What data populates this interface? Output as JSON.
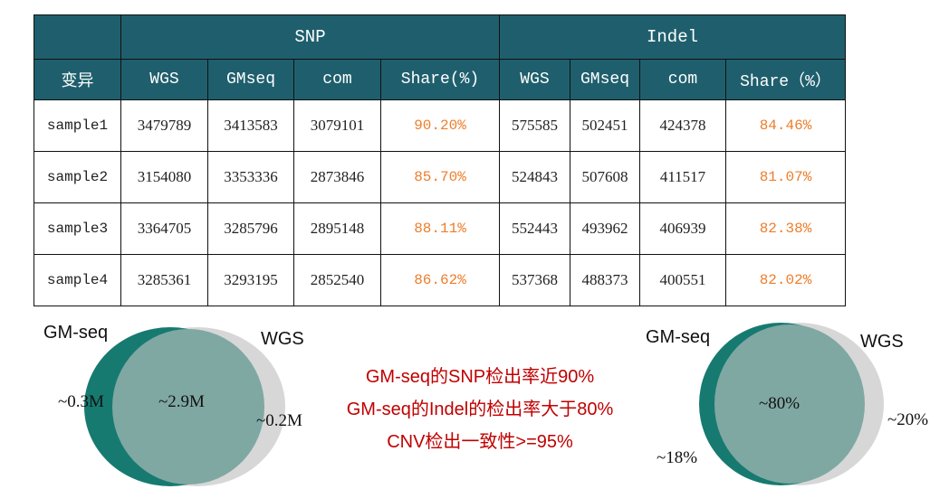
{
  "table": {
    "group_headers": {
      "empty": "",
      "snp": "SNP",
      "indel": "Indel"
    },
    "col_headers": [
      "变异",
      "WGS",
      "GMseq",
      "com",
      "Share(%)",
      "WGS",
      "GMseq",
      "com",
      "Share（%）"
    ],
    "rows": [
      {
        "sample": "sample1",
        "snp_wgs": "3479789",
        "snp_gmseq": "3413583",
        "snp_com": "3079101",
        "snp_share": "90.20%",
        "indel_wgs": "575585",
        "indel_gmseq": "502451",
        "indel_com": "424378",
        "indel_share": "84.46%"
      },
      {
        "sample": "sample2",
        "snp_wgs": "3154080",
        "snp_gmseq": "3353336",
        "snp_com": "2873846",
        "snp_share": "85.70%",
        "indel_wgs": "524843",
        "indel_gmseq": "507608",
        "indel_com": "411517",
        "indel_share": "81.07%"
      },
      {
        "sample": "sample3",
        "snp_wgs": "3364705",
        "snp_gmseq": "3285796",
        "snp_com": "2895148",
        "snp_share": "88.11%",
        "indel_wgs": "552443",
        "indel_gmseq": "493962",
        "indel_com": "406939",
        "indel_share": "82.38%"
      },
      {
        "sample": "sample4",
        "snp_wgs": "3285361",
        "snp_gmseq": "3293195",
        "snp_com": "2852540",
        "snp_share": "86.62%",
        "indel_wgs": "537368",
        "indel_gmseq": "488373",
        "indel_com": "400551",
        "indel_share": "82.02%"
      }
    ],
    "colors": {
      "header_bg": "#1f5f6d",
      "share_text": "#ee7d2b"
    }
  },
  "venn_snp": {
    "left_label": "GM-seq",
    "right_label": "WGS",
    "left_only": "~0.3M",
    "overlap": "~2.9M",
    "right_only": "~0.2M"
  },
  "venn_indel": {
    "left_label": "GM-seq",
    "right_label": "WGS",
    "overlap": "~80%",
    "left_only": "~18%",
    "right_only": "~20%"
  },
  "summary": {
    "line1": "GM-seq的SNP检出率近90%",
    "line2": "GM-seq的Indel的检出率大于80%",
    "line3": "CNV检出一致性>=95%"
  },
  "venn_colors": {
    "gmseq": "#177a70",
    "wgs": "#d7d7d7",
    "overlap": "#7fa8a3",
    "summary_text": "#c00000"
  }
}
